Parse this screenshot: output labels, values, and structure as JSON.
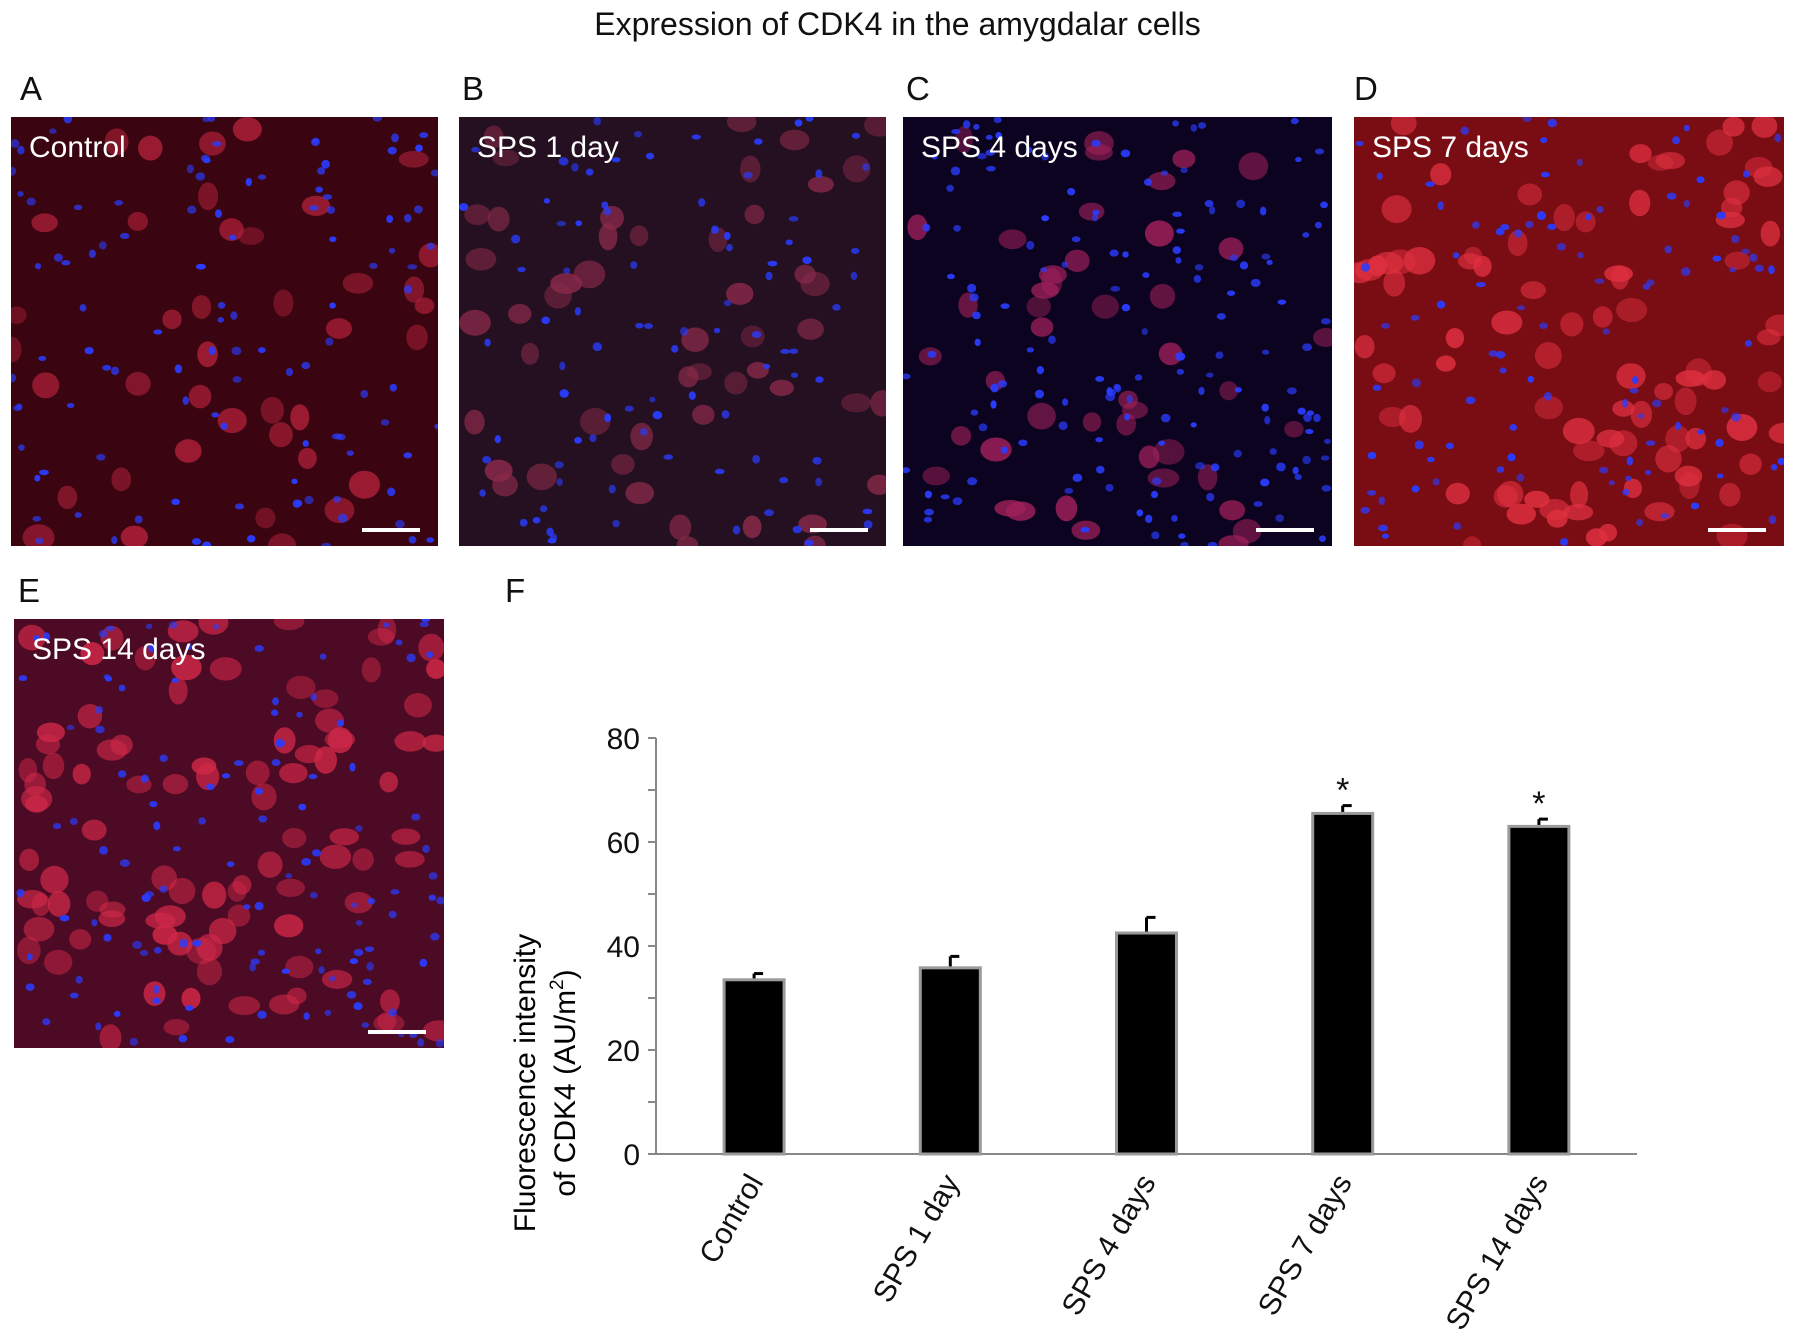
{
  "figure": {
    "title": "Expression of CDK4 in the amygdalar cells"
  },
  "panels": [
    {
      "letter": "A",
      "label": "Control",
      "tint": "#3a0510",
      "cell_color": "#b0203a",
      "cell_count": 40,
      "nuclei": 110
    },
    {
      "letter": "B",
      "label": "SPS 1 day",
      "tint": "#241020",
      "cell_color": "#8a2a4a",
      "cell_count": 50,
      "nuclei": 90
    },
    {
      "letter": "C",
      "label": "SPS 4 days",
      "tint": "#0c0320",
      "cell_color": "#a0205a",
      "cell_count": 45,
      "nuclei": 150
    },
    {
      "letter": "D",
      "label": "SPS 7 days",
      "tint": "#7a0c14",
      "cell_color": "#e03040",
      "cell_count": 85,
      "nuclei": 100
    },
    {
      "letter": "E",
      "label": "SPS 14 days",
      "tint": "#4c0a24",
      "cell_color": "#d02848",
      "cell_count": 95,
      "nuclei": 120
    }
  ],
  "chart_panel_letter": "F",
  "chart_data": {
    "type": "bar",
    "categories": [
      "Control",
      "SPS 1 day",
      "SPS 4 days",
      "SPS 7 days",
      "SPS 14 days"
    ],
    "values": [
      33.5,
      35.8,
      42.5,
      65.5,
      63.0
    ],
    "errors": [
      1.2,
      2.2,
      3.0,
      1.5,
      1.4
    ],
    "significance": [
      "",
      "",
      "",
      "*",
      "*"
    ],
    "ylabel_line1": "Fluorescence intensity",
    "ylabel_line2": "of CDK4 (AU/m",
    "ylabel_superscript": "2",
    "ylabel_close": ")",
    "ylim": [
      0,
      80
    ],
    "yticks": [
      0,
      20,
      40,
      60,
      80
    ],
    "bar_color": "#000000",
    "bar_edge_color": "#9a9a9a",
    "grid": false,
    "legend": "none"
  }
}
